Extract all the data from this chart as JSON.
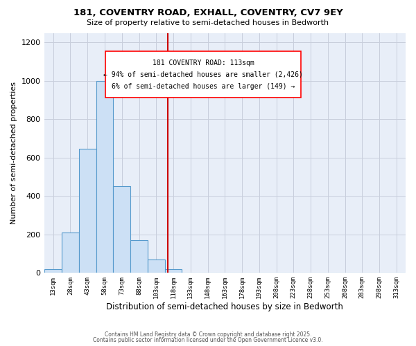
{
  "title1": "181, COVENTRY ROAD, EXHALL, COVENTRY, CV7 9EY",
  "title2": "Size of property relative to semi-detached houses in Bedworth",
  "xlabel": "Distribution of semi-detached houses by size in Bedworth",
  "ylabel": "Number of semi-detached properties",
  "bin_labels": [
    "13sqm",
    "28sqm",
    "43sqm",
    "58sqm",
    "73sqm",
    "88sqm",
    "103sqm",
    "118sqm",
    "133sqm",
    "148sqm",
    "163sqm",
    "178sqm",
    "193sqm",
    "208sqm",
    "223sqm",
    "238sqm",
    "253sqm",
    "268sqm",
    "283sqm",
    "298sqm",
    "313sqm"
  ],
  "bin_centers": [
    13,
    28,
    43,
    58,
    73,
    88,
    103,
    118,
    133,
    148,
    163,
    178,
    193,
    208,
    223,
    238,
    253,
    268,
    283,
    298,
    313
  ],
  "bin_edges": [
    5.5,
    20.5,
    35.5,
    50.5,
    65.5,
    80.5,
    95.5,
    110.5,
    125.5,
    140.5,
    155.5,
    170.5,
    185.5,
    200.5,
    215.5,
    230.5,
    245.5,
    260.5,
    275.5,
    290.5,
    305.5,
    320.5
  ],
  "bar_values": [
    20,
    210,
    645,
    1000,
    450,
    170,
    70,
    20,
    0,
    0,
    0,
    0,
    0,
    0,
    0,
    0,
    0,
    0,
    0,
    0,
    0
  ],
  "property_size": 113,
  "property_label": "181 COVENTRY ROAD: 113sqm",
  "pct_smaller": 94,
  "n_smaller": 2426,
  "pct_larger": 6,
  "n_larger": 149,
  "vline_color": "#cc0000",
  "bar_facecolor": "#cce0f5",
  "bar_edgecolor": "#5599cc",
  "bg_color": "#e8eef8",
  "grid_color": "#c8cedc",
  "ylim": [
    0,
    1250
  ],
  "yticks": [
    0,
    200,
    400,
    600,
    800,
    1000,
    1200
  ],
  "footer1": "Contains HM Land Registry data © Crown copyright and database right 2025.",
  "footer2": "Contains public sector information licensed under the Open Government Licence v3.0."
}
